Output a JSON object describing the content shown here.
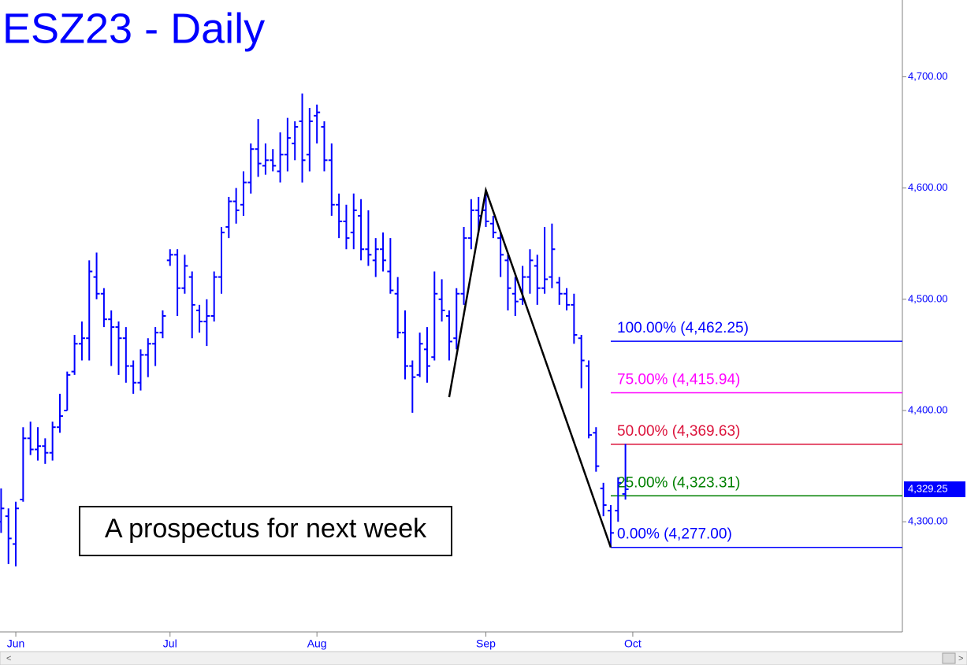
{
  "chart_data": {
    "type": "ohlc",
    "title": "ESZ23 - Daily",
    "annotation": "A prospectus for next week",
    "color": "#0000ff",
    "categories": [
      null,
      null,
      "Jun",
      null,
      null,
      null,
      null,
      null,
      null,
      null,
      null,
      null,
      null,
      null,
      null,
      null,
      null,
      null,
      null,
      null,
      null,
      null,
      null,
      "Jul",
      null,
      null,
      null,
      null,
      null,
      null,
      null,
      null,
      null,
      null,
      null,
      null,
      null,
      null,
      null,
      null,
      null,
      null,
      null,
      "Aug",
      null,
      null,
      null,
      null,
      null,
      null,
      null,
      null,
      null,
      null,
      null,
      null,
      null,
      null,
      null,
      null,
      null,
      null,
      null,
      null,
      null,
      null,
      "Sep",
      null,
      null,
      null,
      null,
      null,
      null,
      null,
      null,
      null,
      null,
      null,
      null,
      null,
      null,
      null,
      null,
      null,
      null,
      null,
      "Oct"
    ],
    "open": [
      4300,
      4305,
      4280,
      4320,
      4375,
      4365,
      4368,
      4362,
      4385,
      4400,
      4435,
      4460,
      4465,
      4520,
      4505,
      4482,
      4475,
      4465,
      4440,
      4425,
      4450,
      4460,
      4470,
      4535,
      4540,
      4510,
      4520,
      4490,
      4480,
      4485,
      4520,
      4565,
      4588,
      4585,
      4605,
      4635,
      4620,
      4625,
      4615,
      4630,
      4640,
      4660,
      4630,
      4665,
      4655,
      4625,
      4585,
      4570,
      4560,
      4575,
      4545,
      4535,
      4545,
      4525,
      4505,
      4470,
      4440,
      4432,
      4455,
      4448,
      4500,
      4485,
      4465,
      4505,
      4555,
      4580,
      4580,
      4568,
      4555,
      4535,
      4505,
      4500,
      4520,
      4530,
      4510,
      4520,
      4515,
      4505,
      4495,
      4465,
      4440,
      4380,
      4330,
      4310,
      4310,
      4325,
      null
    ],
    "high": [
      4330,
      4312,
      4318,
      4385,
      4390,
      4385,
      4375,
      4390,
      4415,
      4435,
      4468,
      4480,
      4535,
      4542,
      4510,
      4490,
      4480,
      4475,
      4445,
      4455,
      4465,
      4475,
      4490,
      4545,
      4545,
      4540,
      4525,
      4495,
      4500,
      4525,
      4565,
      4592,
      4600,
      4615,
      4640,
      4662,
      4640,
      4635,
      4650,
      4663,
      4660,
      4685,
      4672,
      4675,
      4660,
      4640,
      4595,
      4585,
      4595,
      4590,
      4580,
      4555,
      4560,
      4555,
      4520,
      4490,
      4445,
      4470,
      4475,
      4525,
      4518,
      4490,
      4510,
      4565,
      4590,
      4592,
      4598,
      4575,
      4560,
      4540,
      4520,
      4530,
      4545,
      4540,
      4565,
      4568,
      4520,
      4510,
      4505,
      4468,
      4445,
      4385,
      4335,
      4315,
      4340,
      4370,
      null
    ],
    "low": [
      4290,
      4262,
      4260,
      4318,
      4360,
      4355,
      4352,
      4355,
      4380,
      4400,
      4432,
      4445,
      4445,
      4500,
      4475,
      4440,
      4432,
      4425,
      4415,
      4418,
      4430,
      4440,
      4465,
      4530,
      4485,
      4505,
      4465,
      4470,
      4458,
      4480,
      4505,
      4555,
      4568,
      4575,
      4595,
      4610,
      4612,
      4615,
      4605,
      4615,
      4625,
      4605,
      4615,
      4640,
      4615,
      4575,
      4555,
      4545,
      4545,
      4535,
      4530,
      4520,
      4525,
      4505,
      4465,
      4428,
      4398,
      4430,
      4425,
      4445,
      4480,
      4445,
      4455,
      4495,
      4545,
      4560,
      4565,
      4555,
      4520,
      4490,
      4485,
      4495,
      4505,
      4495,
      4505,
      4510,
      4495,
      4490,
      4460,
      4420,
      4375,
      4345,
      4305,
      4277,
      4300,
      4320,
      null
    ],
    "close": [
      4312,
      4285,
      4312,
      4375,
      4365,
      4368,
      4362,
      4385,
      4395,
      4432,
      4460,
      4465,
      4525,
      4505,
      4482,
      4475,
      4465,
      4440,
      4425,
      4450,
      4460,
      4470,
      4485,
      4540,
      4510,
      4530,
      4495,
      4480,
      4485,
      4520,
      4560,
      4588,
      4580,
      4605,
      4635,
      4622,
      4625,
      4620,
      4630,
      4645,
      4655,
      4625,
      4660,
      4668,
      4625,
      4585,
      4570,
      4555,
      4580,
      4545,
      4540,
      4545,
      4535,
      4508,
      4470,
      4440,
      4430,
      4460,
      4440,
      4505,
      4490,
      4462,
      4505,
      4555,
      4580,
      4575,
      4570,
      4560,
      4540,
      4510,
      4498,
      4520,
      4535,
      4510,
      4518,
      4545,
      4505,
      4495,
      4468,
      4445,
      4378,
      4350,
      4315,
      4290,
      4335,
      4329.25,
      null
    ],
    "last": {
      "value": 4329.25,
      "label": "4,329.25"
    },
    "ylim": [
      4201,
      4769
    ],
    "yticks": [
      {
        "value": 4300,
        "label": "4,300.00"
      },
      {
        "value": 4400,
        "label": "4,400.00"
      },
      {
        "value": 4500,
        "label": "4,500.00"
      },
      {
        "value": 4600,
        "label": "4,600.00"
      },
      {
        "value": 4700,
        "label": "4,700.00"
      }
    ],
    "pattern": {
      "x": [
        61,
        66,
        83
      ],
      "values": [
        4412,
        4598,
        4277
      ],
      "color": "#000000"
    },
    "fib_levels": [
      {
        "value": 4462.25,
        "label": "100.00% (4,462.25)",
        "color": "#0000ff"
      },
      {
        "value": 4415.94,
        "label": "75.00% (4,415.94)",
        "color": "#ff00ff"
      },
      {
        "value": 4369.63,
        "label": "50.00% (4,369.63)",
        "color": "#dc143c"
      },
      {
        "value": 4323.31,
        "label": "25.00% (4,323.31)",
        "color": "#008000"
      },
      {
        "value": 4277.0,
        "label": "0.00% (4,277.00)",
        "color": "#0000ff"
      }
    ]
  }
}
